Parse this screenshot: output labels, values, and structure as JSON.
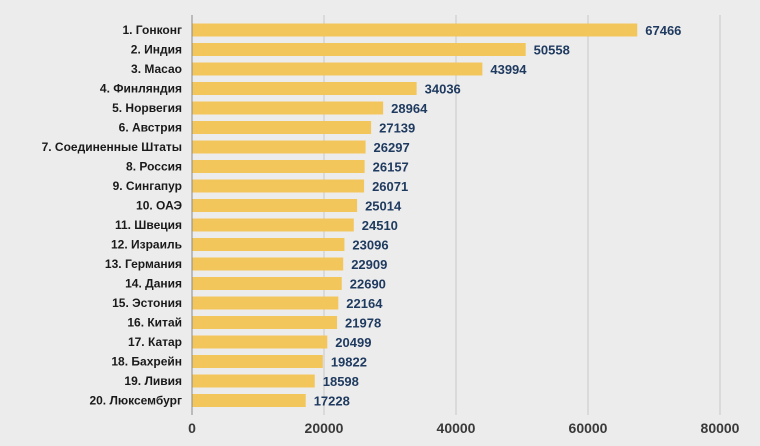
{
  "chart_data": {
    "type": "bar",
    "orientation": "horizontal",
    "categories": [
      "1. Гонконг",
      "2. Индия",
      "3. Масао",
      "4. Финляндия",
      "5. Норвегия",
      "6. Австрия",
      "7. Соединенные Штаты",
      "8. Россия",
      "9. Сингапур",
      "10. ОАЭ",
      "11. Швеция",
      "12. Израиль",
      "13. Германия",
      "14. Дания",
      "15. Эстония",
      "16. Китай",
      "17. Катар",
      "18. Бахрейн",
      "19. Ливия",
      "20. Люксембург"
    ],
    "values": [
      67466,
      50558,
      43994,
      34036,
      28964,
      27139,
      26297,
      26157,
      26071,
      25014,
      24510,
      23096,
      22909,
      22690,
      22164,
      21978,
      20499,
      19822,
      18598,
      17228
    ],
    "value_labels": [
      "67466",
      "50558",
      "43994",
      "34036",
      "28964",
      "27139",
      "26297",
      "26157",
      "26071",
      "25014",
      "24510",
      "23096",
      "22909",
      "22690",
      "22164",
      "21978",
      "20499",
      "19822",
      "18598",
      "17228"
    ],
    "xticks": [
      0,
      20000,
      40000,
      60000,
      80000
    ],
    "xtick_labels": [
      "0",
      "20000",
      "40000",
      "60000",
      "80000"
    ],
    "xlim": [
      0,
      80000
    ],
    "grid": true,
    "bar_color": "#f3c65b",
    "grid_color": "#c8c8c8",
    "value_label_color": "#1f3a5f",
    "title": "",
    "xlabel": "",
    "ylabel": ""
  }
}
